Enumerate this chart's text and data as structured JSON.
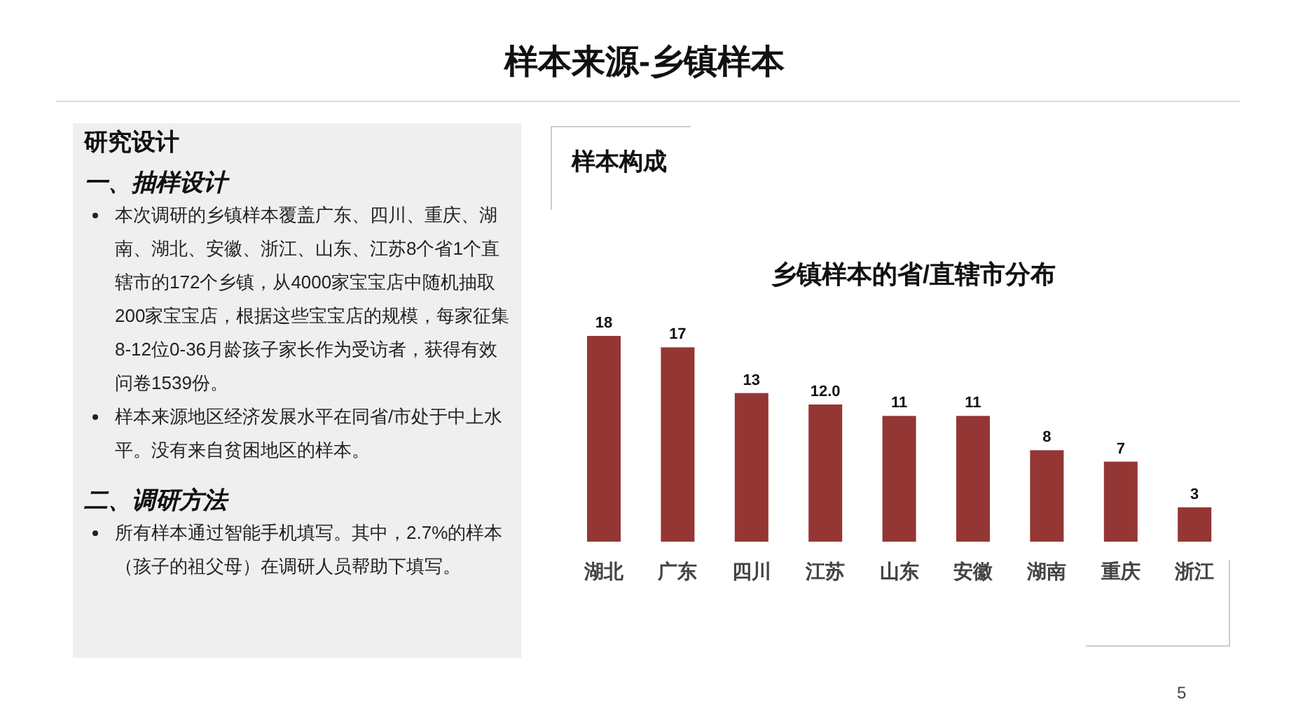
{
  "chart_data": {
    "type": "bar",
    "title": "乡镇样本的省/直辖市分布",
    "categories": [
      "湖北",
      "广东",
      "四川",
      "江苏",
      "山东",
      "安徽",
      "湖南",
      "重庆",
      "浙江"
    ],
    "values": [
      18,
      17,
      13,
      12,
      11,
      11,
      8,
      7,
      3
    ],
    "value_labels": [
      "18",
      "17",
      "13",
      "12.0",
      "11",
      "11",
      "8",
      "7",
      "3"
    ],
    "color": "#943634",
    "annotations": [
      "样本来源-乡镇样本",
      "研究设计",
      "一、抽样设计",
      "本次调研的乡镇样本覆盖广东、四川、重庆、湖南、湖北、安徽、浙江、山东、江苏8个省1个直辖市的172个乡镇，从4000家宝宝店中随机抽取200家宝宝店，根据这些宝宝店的规模，每家征集8-12位0-36月龄孩子家长作为受访者，获得有效问卷1539份。",
      "样本来源地区经济发展水平在同省/市处于中上水平。没有来自贫困地区的样本。",
      "二、调研方法",
      "所有样本通过智能手机填写。其中，2.7%的样本（孩子的祖父母）在调研人员帮助下填写。",
      "样本构成",
      "5"
    ]
  }
}
